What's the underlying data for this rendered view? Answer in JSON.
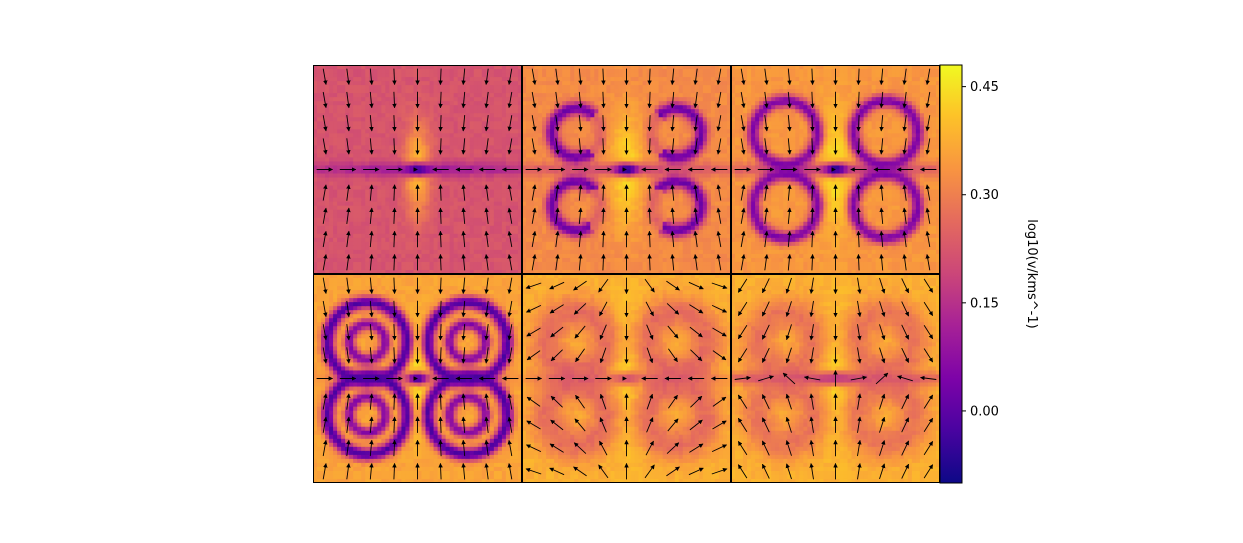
{
  "chart_data": {
    "type": "heatmap",
    "layout": {
      "rows": 2,
      "cols": 3
    },
    "colormap": "plasma",
    "colorbar": {
      "label": "log10(v/kms^-1)",
      "range": [
        -0.1,
        0.48
      ],
      "ticks": [
        0.45,
        0.3,
        0.15,
        0.0
      ],
      "tick_labels": [
        "0.45",
        "0.30",
        "0.15",
        "0.00"
      ]
    },
    "panels": [
      {
        "id": "panel-1",
        "background_level": 0.22,
        "disk_level": 0.1,
        "center_level": -0.03,
        "lobe_scale": 0.0,
        "lobe_level": 0.0,
        "lobe_style": "none",
        "core_level": 0.42,
        "core_extent": 0.3,
        "arrow_mode": "converge"
      },
      {
        "id": "panel-2",
        "background_level": 0.32,
        "disk_level": 0.2,
        "center_level": -0.09,
        "lobe_scale": 0.26,
        "lobe_level": 0.02,
        "lobe_style": "hook",
        "core_level": 0.46,
        "core_extent": 0.45,
        "arrow_mode": "converge"
      },
      {
        "id": "panel-3",
        "background_level": 0.34,
        "disk_level": 0.18,
        "center_level": -0.08,
        "lobe_scale": 0.34,
        "lobe_level": 0.05,
        "lobe_style": "ring",
        "core_level": 0.46,
        "core_extent": 0.5,
        "arrow_mode": "converge"
      },
      {
        "id": "panel-4",
        "background_level": 0.36,
        "disk_level": 0.3,
        "center_level": -0.05,
        "lobe_scale": 0.42,
        "lobe_level": -0.02,
        "lobe_style": "double",
        "core_level": 0.46,
        "core_extent": 0.4,
        "arrow_mode": "converge"
      },
      {
        "id": "panel-5",
        "background_level": 0.38,
        "disk_level": 0.3,
        "center_level": 0.22,
        "lobe_scale": 0.4,
        "lobe_level": 0.22,
        "lobe_style": "soft",
        "core_level": 0.47,
        "core_extent": 0.6,
        "arrow_mode": "outflow"
      },
      {
        "id": "panel-6",
        "background_level": 0.38,
        "disk_level": 0.16,
        "center_level": 0.18,
        "lobe_scale": 0.38,
        "lobe_level": 0.24,
        "lobe_style": "soft",
        "core_level": 0.47,
        "core_extent": 0.5,
        "arrow_mode": "mixed"
      }
    ]
  }
}
